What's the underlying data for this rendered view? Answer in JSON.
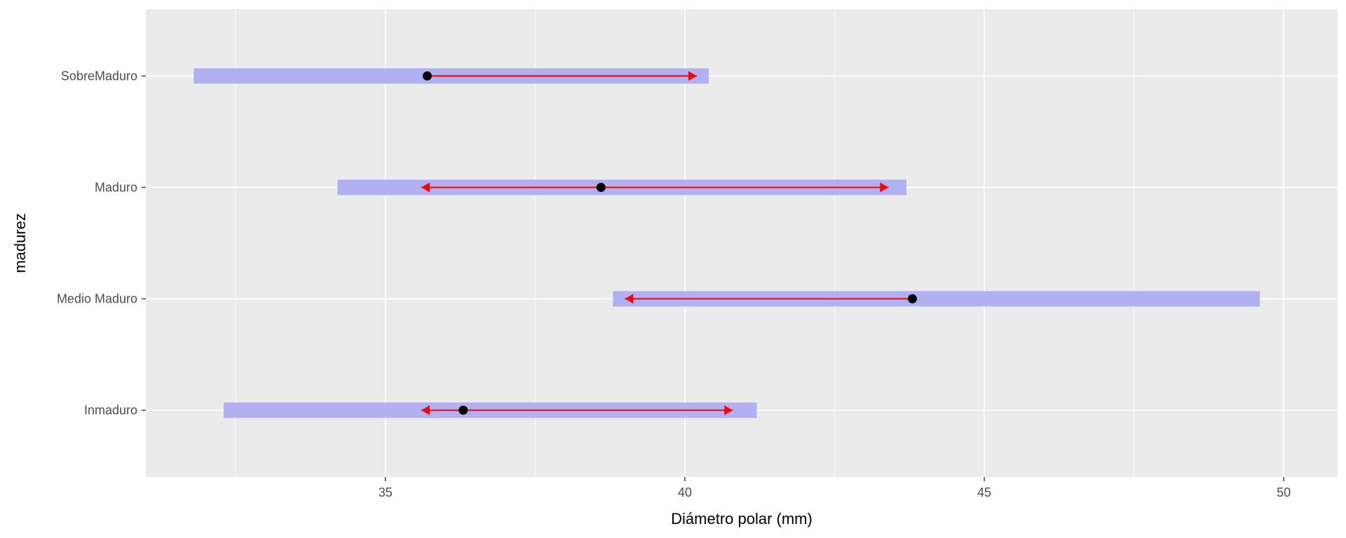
{
  "chart_data": {
    "type": "range-bar-with-arrows",
    "xlabel": "Diámetro polar (mm)",
    "ylabel": "madurez",
    "xlim": [
      31.0,
      50.9
    ],
    "x_ticks": [
      35,
      40,
      45,
      50
    ],
    "x_tick_labels": [
      "35",
      "40",
      "45",
      "50"
    ],
    "categories": [
      "Inmaduro",
      "Medio Maduro",
      "Maduro",
      "SobreMaduro"
    ],
    "ranges": [
      {
        "category": "Inmaduro",
        "min": 32.3,
        "max": 41.2
      },
      {
        "category": "Medio Maduro",
        "min": 38.8,
        "max": 49.6
      },
      {
        "category": "Maduro",
        "min": 34.2,
        "max": 43.7
      },
      {
        "category": "SobreMaduro",
        "min": 31.8,
        "max": 40.4
      }
    ],
    "points": [
      {
        "category": "Inmaduro",
        "value": 36.3
      },
      {
        "category": "Medio Maduro",
        "value": 43.8
      },
      {
        "category": "Maduro",
        "value": 38.6
      },
      {
        "category": "SobreMaduro",
        "value": 35.7
      }
    ],
    "arrows": [
      {
        "category": "Inmaduro",
        "from": 35.6,
        "to": 40.8,
        "both_ends": true
      },
      {
        "category": "Medio Maduro",
        "from": 43.8,
        "to": 39.0,
        "both_ends": false
      },
      {
        "category": "Maduro",
        "from": 35.6,
        "to": 43.4,
        "both_ends": true
      },
      {
        "category": "SobreMaduro",
        "from": 35.7,
        "to": 40.2,
        "both_ends": false
      }
    ],
    "colors": {
      "panel": "#ebebeb",
      "grid": "#ffffff",
      "range_bar": "#b0b0f2",
      "arrow": "#ff0000",
      "point": "#000000"
    },
    "grid": true
  }
}
